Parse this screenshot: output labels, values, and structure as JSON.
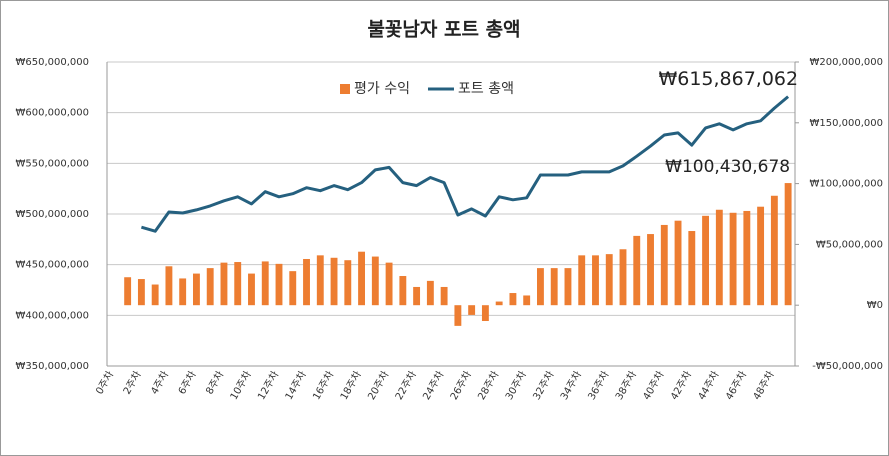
{
  "chart_data": {
    "type": "bar-line",
    "title": "불꽃남자 포트 총액",
    "categories": [
      "0주차",
      null,
      "2주차",
      null,
      "4주차",
      null,
      "6주차",
      null,
      "8주차",
      null,
      "10주차",
      null,
      "12주차",
      null,
      "14주차",
      null,
      "16주차",
      null,
      "18주차",
      null,
      "20주차",
      null,
      "22주차",
      null,
      "24주차",
      null,
      "26주차",
      null,
      "28주차",
      null,
      "30주차",
      null,
      "32주차",
      null,
      "34주차",
      null,
      "36주차",
      null,
      "38주차",
      null,
      "40주차",
      null,
      "42주차",
      null,
      "44주차",
      null,
      "46주차",
      null,
      "48주차",
      null
    ],
    "series": [
      {
        "name": "평가 수익",
        "type": "bar",
        "axis": "y2",
        "color": "#ed7d31",
        "values": [
          null,
          23000000,
          21500000,
          17000000,
          32000000,
          22000000,
          26000000,
          30500000,
          35000000,
          35500000,
          26000000,
          36000000,
          34000000,
          28000000,
          38000000,
          41000000,
          39000000,
          37000000,
          44000000,
          40000000,
          35000000,
          24000000,
          15000000,
          20000000,
          15000000,
          -17000000,
          -8000000,
          -13000000,
          3000000,
          10000000,
          8000000,
          30500000,
          30500000,
          30500000,
          41000000,
          41000000,
          42000000,
          46000000,
          57000000,
          58500000,
          66000000,
          69500000,
          61000000,
          73500000,
          78500000,
          76000000,
          77500000,
          81000000,
          90000000,
          100430678
        ],
        "value_labels": [
          null,
          null,
          null,
          null,
          null,
          null,
          null,
          null,
          null,
          null,
          null,
          null,
          null,
          null,
          null,
          null,
          null,
          null,
          null,
          null,
          null,
          null,
          null,
          null,
          null,
          null,
          null,
          null,
          null,
          null,
          null,
          null,
          null,
          null,
          null,
          null,
          null,
          null,
          null,
          null,
          null,
          null,
          null,
          null,
          null,
          null,
          null,
          null,
          null,
          "₩100,430,678"
        ]
      },
      {
        "name": "포트 총액",
        "type": "line",
        "color": "#25607f",
        "values": [
          null,
          null,
          487000000,
          483000000,
          502000000,
          501000000,
          504000000,
          508000000,
          513000000,
          517000000,
          510000000,
          522000000,
          517000000,
          520000000,
          526000000,
          523000000,
          528000000,
          524000000,
          531000000,
          543500000,
          546000000,
          531000000,
          528000000,
          536000000,
          531000000,
          499000000,
          505000000,
          498000000,
          517000000,
          514000000,
          516000000,
          538500000,
          538500000,
          538500000,
          541500000,
          541500000,
          541500000,
          547500000,
          557000000,
          567000000,
          578000000,
          580000000,
          568000000,
          585000000,
          589000000,
          583000000,
          589000000,
          592000000,
          604500000,
          615867062
        ],
        "value_labels": [
          null,
          null,
          null,
          null,
          null,
          null,
          null,
          null,
          null,
          null,
          null,
          null,
          null,
          null,
          null,
          null,
          null,
          null,
          null,
          null,
          null,
          null,
          null,
          null,
          null,
          null,
          null,
          null,
          null,
          null,
          null,
          null,
          null,
          null,
          null,
          null,
          null,
          null,
          null,
          null,
          null,
          null,
          null,
          null,
          null,
          null,
          null,
          null,
          null,
          "₩615,867,062"
        ]
      }
    ],
    "ylim": [
      350000000,
      650000000
    ],
    "yticks": [
      {
        "value": 350000000,
        "label": "₩350,000,000"
      },
      {
        "value": 400000000,
        "label": "₩400,000,000"
      },
      {
        "value": 450000000,
        "label": "₩450,000,000"
      },
      {
        "value": 500000000,
        "label": "₩500,000,000"
      },
      {
        "value": 550000000,
        "label": "₩550,000,000"
      },
      {
        "value": 600000000,
        "label": "₩600,000,000"
      },
      {
        "value": 650000000,
        "label": "₩650,000,000"
      }
    ],
    "y2lim": [
      -50000000,
      200000000
    ],
    "y2ticks": [
      {
        "value": -50000000,
        "label": "-₩50,000,000"
      },
      {
        "value": 0,
        "label": "₩0"
      },
      {
        "value": 50000000,
        "label": "₩50,000,000"
      },
      {
        "value": 100000000,
        "label": "₩100,000,000"
      },
      {
        "value": 150000000,
        "label": "₩150,000,000"
      },
      {
        "value": 200000000,
        "label": "₩200,000,000"
      }
    ],
    "grid": true,
    "legend": "top"
  }
}
